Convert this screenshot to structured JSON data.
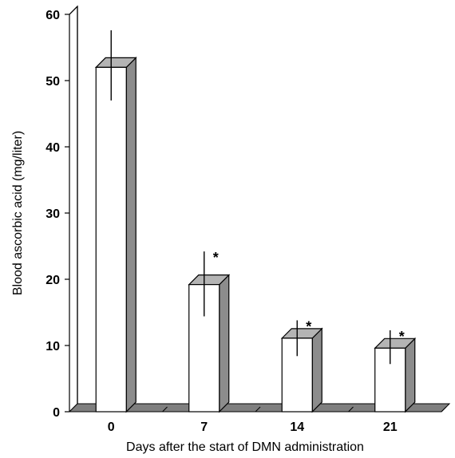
{
  "chart_data": {
    "type": "bar",
    "style": "3d",
    "categories": [
      "0",
      "7",
      "14",
      "21"
    ],
    "values": [
      52,
      19.2,
      11.1,
      9.6
    ],
    "error_low": [
      47,
      14.4,
      8.4,
      7.2
    ],
    "error_high": [
      57.6,
      24.2,
      13.8,
      12.3
    ],
    "significance": [
      "",
      "*",
      "*",
      "*"
    ],
    "xlabel": "Days after the start of DMN administration",
    "ylabel": "Blood ascorbic acid (mg/liter)",
    "ylim": [
      0,
      60
    ],
    "yticks": [
      0,
      10,
      20,
      30,
      40,
      50,
      60
    ],
    "grid": false,
    "colors": {
      "bar_front": "#ffffff",
      "bar_side": "#8c8c8c",
      "bar_top": "#b4b4b4",
      "floor": "#7f7f7f",
      "stroke": "#000000"
    }
  }
}
